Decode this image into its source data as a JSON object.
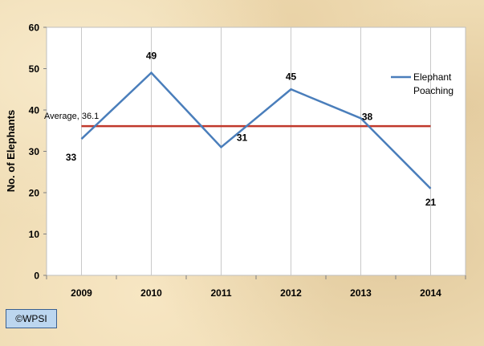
{
  "chart_data": {
    "type": "line",
    "title": "",
    "xlabel": "",
    "ylabel": "No. of Elephants",
    "categories": [
      "2009",
      "2010",
      "2011",
      "2012",
      "2013",
      "2014"
    ],
    "ylim": [
      0,
      60
    ],
    "yticks": [
      "0",
      "10",
      "20",
      "30",
      "40",
      "50",
      "60"
    ],
    "grid": "vertical",
    "legend_position": "right",
    "series": [
      {
        "name": "Elephant Poaching",
        "legend_lines": [
          "Elephant",
          "Poaching"
        ],
        "values": [
          33,
          49,
          31,
          45,
          38,
          21
        ],
        "labels": [
          "33",
          "49",
          "31",
          "45",
          "38",
          "21"
        ],
        "color": "#4a7ebb"
      }
    ],
    "reference_line": {
      "label": "Average, 36.1",
      "value": 36.1,
      "color": "#c0392b"
    }
  },
  "copyright": "©WPSI"
}
